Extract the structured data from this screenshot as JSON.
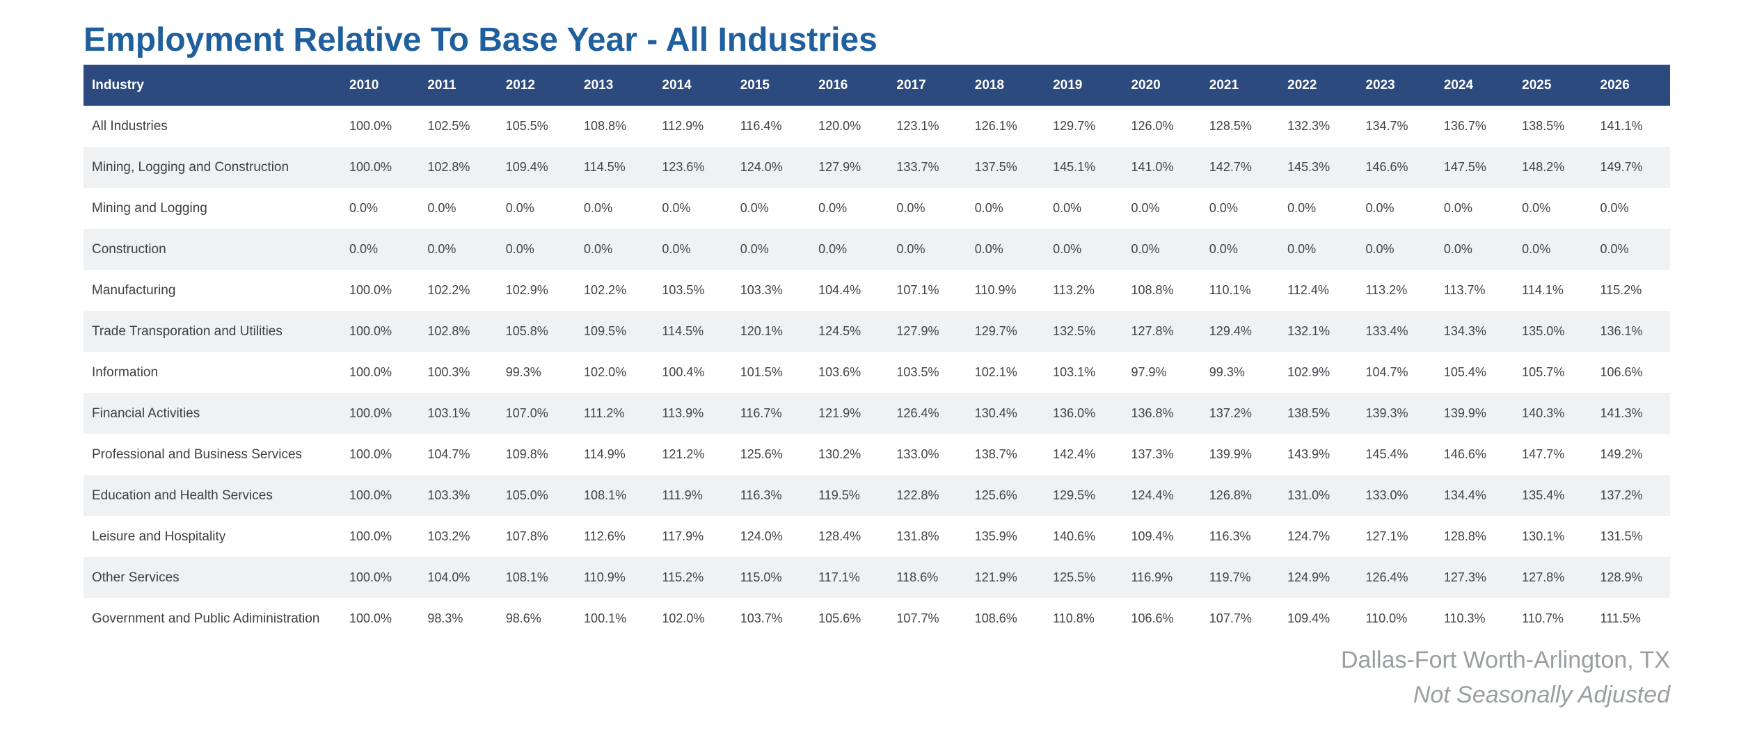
{
  "title": "Employment Relative To Base Year - All Industries",
  "header": {
    "industry_label": "Industry",
    "years": [
      "2010",
      "2011",
      "2012",
      "2013",
      "2014",
      "2015",
      "2016",
      "2017",
      "2018",
      "2019",
      "2020",
      "2021",
      "2022",
      "2023",
      "2024",
      "2025",
      "2026"
    ]
  },
  "rows": [
    {
      "industry": "All Industries",
      "values": [
        "100.0%",
        "102.5%",
        "105.5%",
        "108.8%",
        "112.9%",
        "116.4%",
        "120.0%",
        "123.1%",
        "126.1%",
        "129.7%",
        "126.0%",
        "128.5%",
        "132.3%",
        "134.7%",
        "136.7%",
        "138.5%",
        "141.1%"
      ]
    },
    {
      "industry": "Mining, Logging and Construction",
      "values": [
        "100.0%",
        "102.8%",
        "109.4%",
        "114.5%",
        "123.6%",
        "124.0%",
        "127.9%",
        "133.7%",
        "137.5%",
        "145.1%",
        "141.0%",
        "142.7%",
        "145.3%",
        "146.6%",
        "147.5%",
        "148.2%",
        "149.7%"
      ]
    },
    {
      "industry": "Mining and Logging",
      "values": [
        "0.0%",
        "0.0%",
        "0.0%",
        "0.0%",
        "0.0%",
        "0.0%",
        "0.0%",
        "0.0%",
        "0.0%",
        "0.0%",
        "0.0%",
        "0.0%",
        "0.0%",
        "0.0%",
        "0.0%",
        "0.0%",
        "0.0%"
      ]
    },
    {
      "industry": "Construction",
      "values": [
        "0.0%",
        "0.0%",
        "0.0%",
        "0.0%",
        "0.0%",
        "0.0%",
        "0.0%",
        "0.0%",
        "0.0%",
        "0.0%",
        "0.0%",
        "0.0%",
        "0.0%",
        "0.0%",
        "0.0%",
        "0.0%",
        "0.0%"
      ]
    },
    {
      "industry": "Manufacturing",
      "values": [
        "100.0%",
        "102.2%",
        "102.9%",
        "102.2%",
        "103.5%",
        "103.3%",
        "104.4%",
        "107.1%",
        "110.9%",
        "113.2%",
        "108.8%",
        "110.1%",
        "112.4%",
        "113.2%",
        "113.7%",
        "114.1%",
        "115.2%"
      ]
    },
    {
      "industry": "Trade Transporation and Utilities",
      "values": [
        "100.0%",
        "102.8%",
        "105.8%",
        "109.5%",
        "114.5%",
        "120.1%",
        "124.5%",
        "127.9%",
        "129.7%",
        "132.5%",
        "127.8%",
        "129.4%",
        "132.1%",
        "133.4%",
        "134.3%",
        "135.0%",
        "136.1%"
      ]
    },
    {
      "industry": "Information",
      "values": [
        "100.0%",
        "100.3%",
        "99.3%",
        "102.0%",
        "100.4%",
        "101.5%",
        "103.6%",
        "103.5%",
        "102.1%",
        "103.1%",
        "97.9%",
        "99.3%",
        "102.9%",
        "104.7%",
        "105.4%",
        "105.7%",
        "106.6%"
      ]
    },
    {
      "industry": "Financial Activities",
      "values": [
        "100.0%",
        "103.1%",
        "107.0%",
        "111.2%",
        "113.9%",
        "116.7%",
        "121.9%",
        "126.4%",
        "130.4%",
        "136.0%",
        "136.8%",
        "137.2%",
        "138.5%",
        "139.3%",
        "139.9%",
        "140.3%",
        "141.3%"
      ]
    },
    {
      "industry": "Professional and Business Services",
      "values": [
        "100.0%",
        "104.7%",
        "109.8%",
        "114.9%",
        "121.2%",
        "125.6%",
        "130.2%",
        "133.0%",
        "138.7%",
        "142.4%",
        "137.3%",
        "139.9%",
        "143.9%",
        "145.4%",
        "146.6%",
        "147.7%",
        "149.2%"
      ]
    },
    {
      "industry": "Education and Health Services",
      "values": [
        "100.0%",
        "103.3%",
        "105.0%",
        "108.1%",
        "111.9%",
        "116.3%",
        "119.5%",
        "122.8%",
        "125.6%",
        "129.5%",
        "124.4%",
        "126.8%",
        "131.0%",
        "133.0%",
        "134.4%",
        "135.4%",
        "137.2%"
      ]
    },
    {
      "industry": "Leisure and Hospitality",
      "values": [
        "100.0%",
        "103.2%",
        "107.8%",
        "112.6%",
        "117.9%",
        "124.0%",
        "128.4%",
        "131.8%",
        "135.9%",
        "140.6%",
        "109.4%",
        "116.3%",
        "124.7%",
        "127.1%",
        "128.8%",
        "130.1%",
        "131.5%"
      ]
    },
    {
      "industry": "Other Services",
      "values": [
        "100.0%",
        "104.0%",
        "108.1%",
        "110.9%",
        "115.2%",
        "115.0%",
        "117.1%",
        "118.6%",
        "121.9%",
        "125.5%",
        "116.9%",
        "119.7%",
        "124.9%",
        "126.4%",
        "127.3%",
        "127.8%",
        "128.9%"
      ]
    },
    {
      "industry": "Government and Public Adiministration",
      "values": [
        "100.0%",
        "98.3%",
        "98.6%",
        "100.1%",
        "102.0%",
        "103.7%",
        "105.6%",
        "107.7%",
        "108.6%",
        "110.8%",
        "106.6%",
        "107.7%",
        "109.4%",
        "110.0%",
        "110.3%",
        "110.7%",
        "111.5%"
      ]
    }
  ],
  "footer": {
    "location": "Dallas-Fort Worth-Arlington, TX",
    "adjustment": "Not Seasonally Adjusted"
  },
  "colors": {
    "title": "#1f5f9e",
    "header_bg": "#2c4a7e",
    "header_text": "#ffffff",
    "stripe_bg": "#f0f1f3",
    "footer_text": "#9a9ea3"
  }
}
